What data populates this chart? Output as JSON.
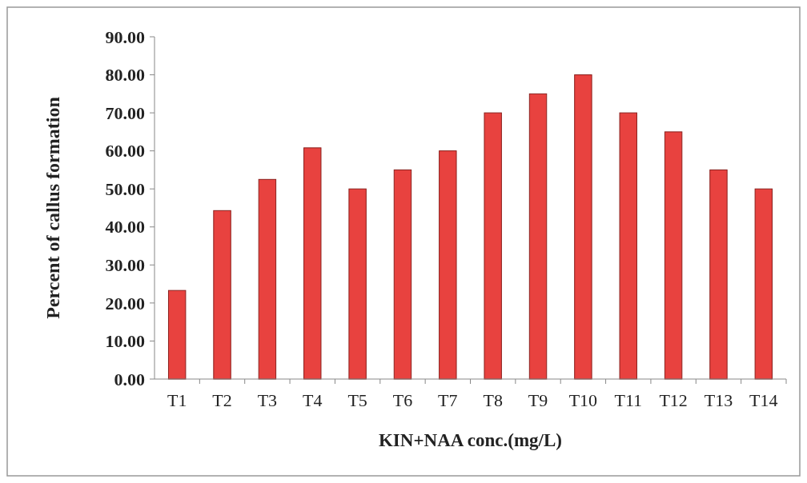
{
  "chart_data": {
    "type": "bar",
    "xlabel": "KIN+NAA conc.(mg/L)",
    "ylabel": "Percent of callus formation",
    "categories": [
      "T1",
      "T2",
      "T3",
      "T4",
      "T5",
      "T6",
      "T7",
      "T8",
      "T9",
      "T10",
      "T11",
      "T12",
      "T13",
      "T14"
    ],
    "values": [
      23.3,
      44.3,
      52.5,
      60.8,
      50,
      55,
      60,
      70,
      75,
      80,
      70,
      65,
      55,
      50
    ],
    "color": "#e8423f",
    "ylim": [
      0,
      90
    ],
    "yticks": [
      {
        "value": 0,
        "label": "0.00"
      },
      {
        "value": 10,
        "label": "10.00"
      },
      {
        "value": 20,
        "label": "20.00"
      },
      {
        "value": 30,
        "label": "30.00"
      },
      {
        "value": 40,
        "label": "40.00"
      },
      {
        "value": 50,
        "label": "50.00"
      },
      {
        "value": 60,
        "label": "60.00"
      },
      {
        "value": 70,
        "label": "70.00"
      },
      {
        "value": 80,
        "label": "80.00"
      },
      {
        "value": 90,
        "label": "90.00"
      }
    ],
    "grid": false
  }
}
